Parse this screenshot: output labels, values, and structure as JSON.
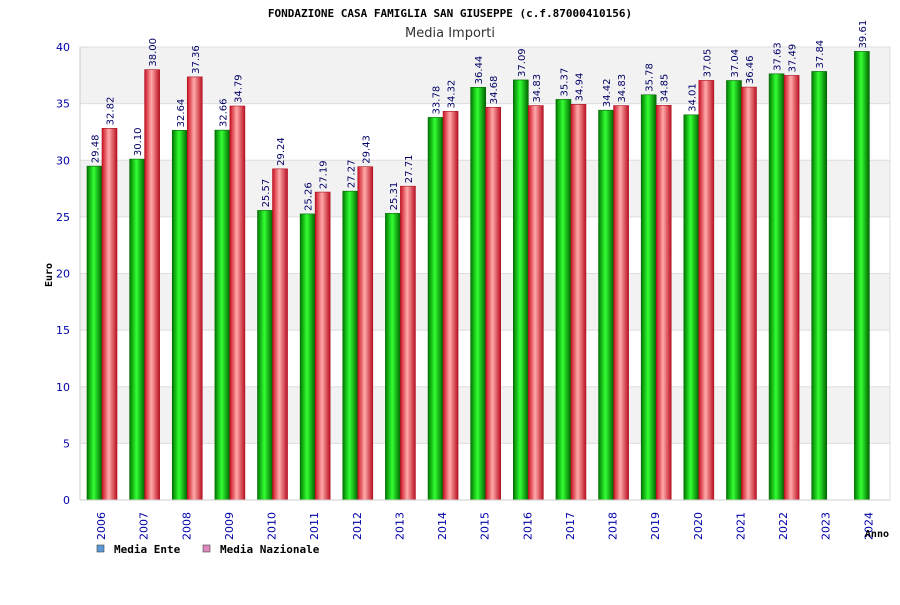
{
  "chart_data": {
    "type": "bar",
    "title": "FONDAZIONE CASA FAMIGLIA SAN GIUSEPPE (c.f.87000410156)",
    "subtitle": "Media Importi",
    "xlabel": "Anno",
    "ylabel": "Euro",
    "ylim": [
      0,
      40
    ],
    "yticks": [
      "0",
      "5",
      "10",
      "15",
      "20",
      "25",
      "30",
      "35",
      "40"
    ],
    "categories": [
      "2006",
      "2007",
      "2008",
      "2009",
      "2010",
      "2011",
      "2012",
      "2013",
      "2014",
      "2015",
      "2016",
      "2017",
      "2018",
      "2019",
      "2020",
      "2021",
      "2022",
      "2023",
      "2024"
    ],
    "series": [
      {
        "name": "Media Ente",
        "color": "#00bb00",
        "legend_color": "#5b9bd5",
        "values": [
          29.48,
          30.1,
          32.64,
          32.66,
          25.57,
          25.26,
          27.27,
          25.31,
          33.78,
          36.44,
          37.09,
          35.37,
          34.42,
          35.78,
          34.01,
          37.04,
          37.63,
          37.84,
          39.61
        ],
        "labels": [
          "29.48",
          "30.10",
          "32.64",
          "32.66",
          "25.57",
          "25.26",
          "27.27",
          "25.31",
          "33.78",
          "36.44",
          "37.09",
          "35.37",
          "34.42",
          "35.78",
          "34.01",
          "37.04",
          "37.63",
          "37.84",
          "39.61"
        ]
      },
      {
        "name": "Media Nazionale",
        "color": "#ee3344",
        "legend_color": "#dd88bb",
        "values": [
          32.82,
          38.0,
          37.36,
          34.79,
          29.24,
          27.19,
          29.43,
          27.71,
          34.32,
          34.68,
          34.83,
          34.94,
          34.83,
          34.85,
          37.05,
          36.46,
          37.49,
          null,
          null
        ],
        "labels": [
          "32.82",
          "38.00",
          "37.36",
          "34.79",
          "29.24",
          "27.19",
          "29.43",
          "27.71",
          "34.32",
          "34.68",
          "34.83",
          "34.94",
          "34.83",
          "34.85",
          "37.05",
          "36.46",
          "37.49",
          null,
          null
        ]
      }
    ],
    "legend_position": "bottom-left",
    "grid": true
  }
}
